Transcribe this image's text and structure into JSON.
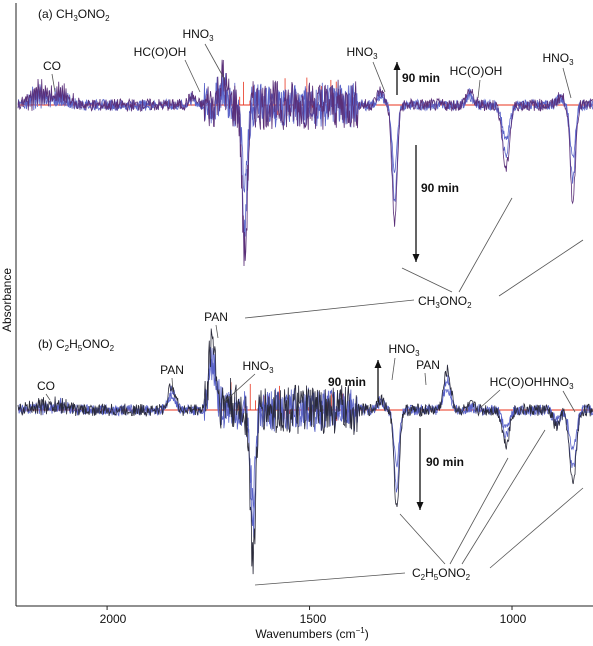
{
  "figure": {
    "ylabel": "Absorbance",
    "xlabel_main": "Wavenumbers (cm",
    "xlabel_sup": "−1",
    "xlabel_end": ")",
    "x_ticks": [
      "2000",
      "1500",
      "1000"
    ]
  },
  "panels": [
    {
      "label_prefix": "(a) CH",
      "label_sub1": "3",
      "label_mid": "ONO",
      "label_sub2": "2",
      "reactant_main": "CH",
      "reactant_sub1": "3",
      "reactant_mid": "ONO",
      "reactant_sub2": "2",
      "arrow_up_label": "90 min",
      "arrow_down_label": "90 min",
      "annotations": {
        "co": "CO",
        "hcooh_1": "HC(O)OH",
        "hno3_1": "HNO",
        "hno3_2": "HNO",
        "hcooh_2": "HC(O)OH",
        "hno3_3": "HNO",
        "hno3_sub": "3"
      }
    },
    {
      "label_prefix": "(b) C",
      "label_sub1": "2",
      "label_mid": "H",
      "label_sub2": "5",
      "label_end": "ONO",
      "label_sub3": "2",
      "reactant_main": "C",
      "reactant_sub1": "2",
      "reactant_mid": "H",
      "reactant_sub2": "5",
      "reactant_end": "ONO",
      "reactant_sub3": "2",
      "arrow_up_label": "90 min",
      "arrow_down_label": "90 min",
      "annotations": {
        "co": "CO",
        "pan_1": "PAN",
        "pan_2": "PAN",
        "hno3_1": "HNO",
        "hno3_2": "HNO",
        "pan_3": "PAN",
        "hcooh": "HC(O)OH",
        "hno3_3": "HNO",
        "hno3_sub": "3"
      }
    }
  ],
  "chart_data": [
    {
      "type": "line",
      "panel": "(a) CH3ONO2",
      "xlabel": "Wavenumbers (cm−1)",
      "ylabel": "Absorbance",
      "xlim": [
        2220,
        800
      ],
      "x_reversed": true,
      "x_ticks": [
        2000,
        1500,
        1000
      ],
      "y_units": "relative absorbance (baseline 0, positive up)",
      "colors": {
        "spectrum": "#5a63c8",
        "spectrum_dark": "#5a2f78",
        "reference": "#e8331e",
        "baseline": "#e8331e"
      },
      "peaks": [
        {
          "x": 2170,
          "y": 0.9,
          "label": "CO",
          "kind": "rotational band"
        },
        {
          "x": 2115,
          "y": 0.7,
          "label": "CO",
          "kind": "rotational band"
        },
        {
          "x": 1790,
          "y": 0.3,
          "label": "HC(O)OH"
        },
        {
          "x": 1715,
          "y": 0.9,
          "label": "HNO3"
        },
        {
          "x": 1660,
          "y": -5.4,
          "label": "CH3ONO2"
        },
        {
          "x": 1325,
          "y": 0.5,
          "label": "HNO3"
        },
        {
          "x": 1290,
          "y": -4.2,
          "label": "CH3ONO2"
        },
        {
          "x": 1105,
          "y": 0.5,
          "label": "HC(O)OH"
        },
        {
          "x": 1015,
          "y": -2.3,
          "label": "CH3ONO2"
        },
        {
          "x": 880,
          "y": 0.3,
          "label": "HNO3"
        },
        {
          "x": 850,
          "y": -3.4,
          "label": "CH3ONO2"
        }
      ]
    },
    {
      "type": "line",
      "panel": "(b) C2H5ONO2",
      "xlabel": "Wavenumbers (cm−1)",
      "ylabel": "Absorbance",
      "xlim": [
        2220,
        800
      ],
      "x_reversed": true,
      "x_ticks": [
        2000,
        1500,
        1000
      ],
      "y_units": "relative absorbance (baseline 0, positive up)",
      "colors": {
        "spectrum": "#5a63c8",
        "spectrum_dark": "#2a2a3a",
        "reference": "#e8331e",
        "baseline": "#e8331e"
      },
      "peaks": [
        {
          "x": 2170,
          "y": 0.35,
          "label": "CO",
          "kind": "rotational band"
        },
        {
          "x": 2115,
          "y": 0.3,
          "label": "CO",
          "kind": "rotational band"
        },
        {
          "x": 1840,
          "y": 0.9,
          "label": "PAN"
        },
        {
          "x": 1740,
          "y": 2.6,
          "label": "PAN"
        },
        {
          "x": 1700,
          "y": 0.3,
          "label": "HNO3"
        },
        {
          "x": 1640,
          "y": -5.4,
          "label": "C2H5ONO2"
        },
        {
          "x": 1325,
          "y": 0.4,
          "label": "HNO3"
        },
        {
          "x": 1285,
          "y": -3.5,
          "label": "C2H5ONO2"
        },
        {
          "x": 1160,
          "y": 1.4,
          "label": "PAN"
        },
        {
          "x": 1100,
          "y": 0.15,
          "label": "HC(O)OH"
        },
        {
          "x": 1015,
          "y": -1.2,
          "label": "C2H5ONO2"
        },
        {
          "x": 890,
          "y": -0.6,
          "label": "C2H5ONO2"
        },
        {
          "x": 850,
          "y": -2.6,
          "label": "C2H5ONO2"
        }
      ]
    }
  ]
}
